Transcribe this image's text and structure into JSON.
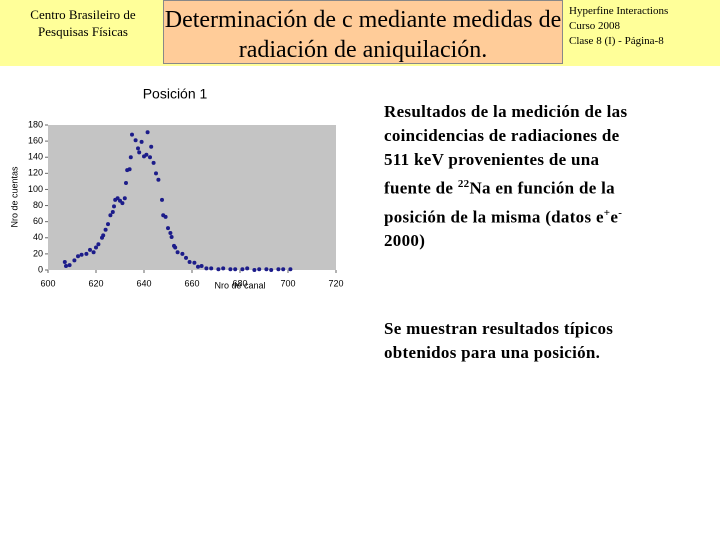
{
  "header": {
    "institution": "Centro Brasileiro de Pesquisas Físicas",
    "title": "Determinación de c mediante medidas de radiación de aniquilación.",
    "course": [
      "Hyperfine Interactions",
      "Curso 2008",
      "Clase 8 (I) -  Página-8"
    ]
  },
  "chart_data": {
    "type": "scatter",
    "title": "Posición 1",
    "x_label": "Nro de canal",
    "y_label": "Nro de cuentas",
    "color": "#1c1c8a",
    "x": [
      607,
      607.5,
      609,
      611,
      612.5,
      614,
      616,
      617.5,
      619,
      620,
      621,
      622.5,
      623,
      624,
      625,
      626,
      627,
      627.5,
      628,
      629,
      630,
      631,
      632,
      632.5,
      633,
      634,
      634.5,
      635,
      636.5,
      637.5,
      638,
      639,
      640,
      641,
      641.5,
      642.5,
      643,
      644,
      645,
      646,
      647.5,
      648,
      649,
      650,
      651,
      651.5,
      652.5,
      653,
      654,
      656,
      657.5,
      659,
      661,
      662.5,
      664,
      666,
      668,
      671,
      673,
      676,
      678,
      681,
      683,
      686,
      688,
      691,
      693,
      696,
      698,
      701
    ],
    "values": [
      10,
      5,
      6,
      12,
      17,
      19,
      20,
      25,
      22,
      28,
      32,
      40,
      43,
      50,
      57,
      68,
      72,
      79,
      87,
      89,
      86,
      83,
      89,
      108,
      124,
      125,
      140,
      168,
      161,
      151,
      146,
      159,
      141,
      143,
      171,
      140,
      153,
      133,
      120,
      112,
      87,
      68,
      66,
      52,
      46,
      41,
      30,
      28,
      22,
      20,
      15,
      10,
      9,
      4,
      5,
      2,
      2,
      1,
      2,
      1,
      1,
      1,
      2,
      0,
      1,
      1,
      0,
      1,
      1,
      1
    ],
    "xlim": [
      600,
      720
    ],
    "xticks": [
      600,
      620,
      640,
      660,
      680,
      700,
      720
    ],
    "ylim": [
      0,
      180
    ],
    "yticks": [
      0,
      20,
      40,
      60,
      80,
      100,
      120,
      140,
      160,
      180
    ]
  },
  "body": {
    "paragraph1": [
      "Resultados de la medición de las coincidencias  de radiaciones de 511 keV provenientes de una fuente de ",
      "22",
      "Na en función de la posición de la misma (datos e",
      "+",
      "e",
      "-",
      " 2000)"
    ],
    "paragraph2": "Se muestran resultados típicos obtenidos  para una posición."
  }
}
